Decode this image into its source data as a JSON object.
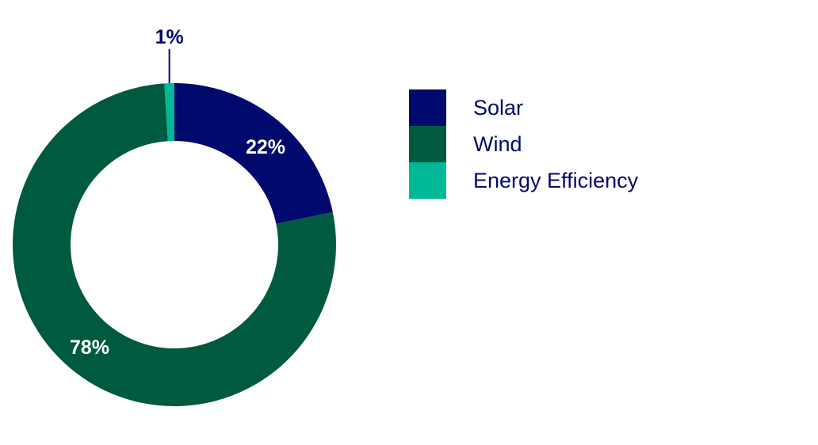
{
  "chart_data": {
    "type": "pie",
    "style": "donut",
    "title": "",
    "legend_position": "right",
    "slices": [
      {
        "name": "Solar",
        "value": 22,
        "label": "22%",
        "color": "#000a6e",
        "label_color": "#ffffff"
      },
      {
        "name": "Wind",
        "value": 78,
        "label": "78%",
        "color": "#005a3f",
        "label_color": "#ffffff"
      },
      {
        "name": "Energy Efficiency",
        "value": 1,
        "label": "1%",
        "color": "#00b896",
        "label_color": "#000a6e"
      }
    ]
  }
}
